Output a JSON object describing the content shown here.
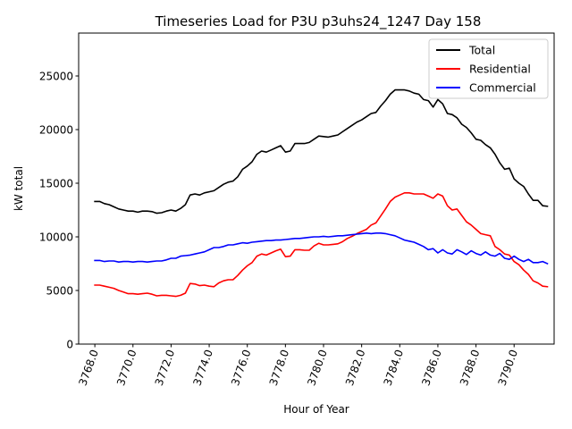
{
  "chart_data": {
    "type": "line",
    "title": "Timeseries Load for P3U p3uhs24_1247  Day 158",
    "xlabel": "Hour of Year",
    "ylabel": "kW total",
    "xlim": [
      3767.15,
      3792.1
    ],
    "ylim": [
      0,
      29000
    ],
    "xticks": [
      3768,
      3770,
      3772,
      3774,
      3776,
      3778,
      3780,
      3782,
      3784,
      3786,
      3788,
      3790
    ],
    "xtick_labels": [
      "3768.0",
      "3770.0",
      "3772.0",
      "3774.0",
      "3776.0",
      "3778.0",
      "3780.0",
      "3782.0",
      "3784.0",
      "3786.0",
      "3788.0",
      "3790.0"
    ],
    "yticks": [
      0,
      5000,
      10000,
      15000,
      20000,
      25000
    ],
    "ytick_labels": [
      "0",
      "5000",
      "10000",
      "15000",
      "20000",
      "25000"
    ],
    "grid": false,
    "legend_position": "top-right",
    "x_start": 3768.0,
    "x_step": 0.25,
    "series": [
      {
        "name": "Total",
        "color": "#000000",
        "values": [
          13300,
          13300,
          13100,
          13000,
          12800,
          12600,
          12500,
          12400,
          12400,
          12300,
          12400,
          12400,
          12350,
          12200,
          12250,
          12400,
          12500,
          12400,
          12650,
          13000,
          13900,
          14000,
          13900,
          14100,
          14200,
          14300,
          14600,
          14900,
          15100,
          15200,
          15600,
          16300,
          16600,
          17000,
          17700,
          18000,
          17900,
          18100,
          18300,
          18500,
          17900,
          18000,
          18700,
          18700,
          18700,
          18800,
          19100,
          19400,
          19350,
          19300,
          19400,
          19500,
          19800,
          20100,
          20400,
          20700,
          20900,
          21200,
          21500,
          21600,
          22200,
          22700,
          23300,
          23700,
          23700,
          23700,
          23600,
          23400,
          23300,
          22800,
          22700,
          22100,
          22800,
          22400,
          21500,
          21400,
          21100,
          20500,
          20200,
          19700,
          19100,
          19000,
          18600,
          18300,
          17700,
          16900,
          16300,
          16400,
          15400,
          15000,
          14700,
          14000,
          13400,
          13400,
          12900,
          12850
        ]
      },
      {
        "name": "Residential",
        "color": "#ff0000",
        "values": [
          5500,
          5500,
          5400,
          5300,
          5200,
          5000,
          4850,
          4700,
          4700,
          4650,
          4700,
          4750,
          4650,
          4500,
          4550,
          4550,
          4500,
          4450,
          4550,
          4750,
          5650,
          5600,
          5450,
          5500,
          5400,
          5350,
          5700,
          5900,
          6000,
          6000,
          6400,
          6900,
          7300,
          7600,
          8200,
          8400,
          8300,
          8500,
          8700,
          8850,
          8150,
          8200,
          8800,
          8800,
          8750,
          8750,
          9150,
          9400,
          9250,
          9250,
          9300,
          9350,
          9550,
          9850,
          10050,
          10300,
          10500,
          10700,
          11100,
          11300,
          11950,
          12600,
          13300,
          13700,
          13900,
          14100,
          14100,
          14000,
          14000,
          14000,
          13800,
          13600,
          14000,
          13800,
          12900,
          12500,
          12600,
          12000,
          11400,
          11100,
          10700,
          10300,
          10200,
          10100,
          9100,
          8800,
          8400,
          8300,
          7700,
          7400,
          6900,
          6500,
          5900,
          5700,
          5400,
          5350
        ]
      },
      {
        "name": "Commercial",
        "color": "#0000ff",
        "values": [
          7800,
          7800,
          7700,
          7750,
          7750,
          7650,
          7700,
          7700,
          7650,
          7700,
          7700,
          7650,
          7700,
          7750,
          7750,
          7850,
          8000,
          8000,
          8200,
          8250,
          8300,
          8400,
          8500,
          8600,
          8800,
          9000,
          9000,
          9100,
          9250,
          9250,
          9350,
          9450,
          9400,
          9500,
          9550,
          9600,
          9650,
          9650,
          9700,
          9700,
          9750,
          9800,
          9850,
          9850,
          9900,
          9950,
          10000,
          10000,
          10050,
          10000,
          10050,
          10100,
          10100,
          10150,
          10200,
          10250,
          10300,
          10350,
          10300,
          10350,
          10350,
          10300,
          10200,
          10100,
          9900,
          9700,
          9600,
          9500,
          9300,
          9100,
          8800,
          8900,
          8500,
          8800,
          8500,
          8400,
          8800,
          8600,
          8350,
          8700,
          8450,
          8300,
          8600,
          8300,
          8200,
          8450,
          8000,
          7900,
          8200,
          7900,
          7700,
          7900,
          7600,
          7600,
          7700,
          7500
        ]
      }
    ]
  }
}
